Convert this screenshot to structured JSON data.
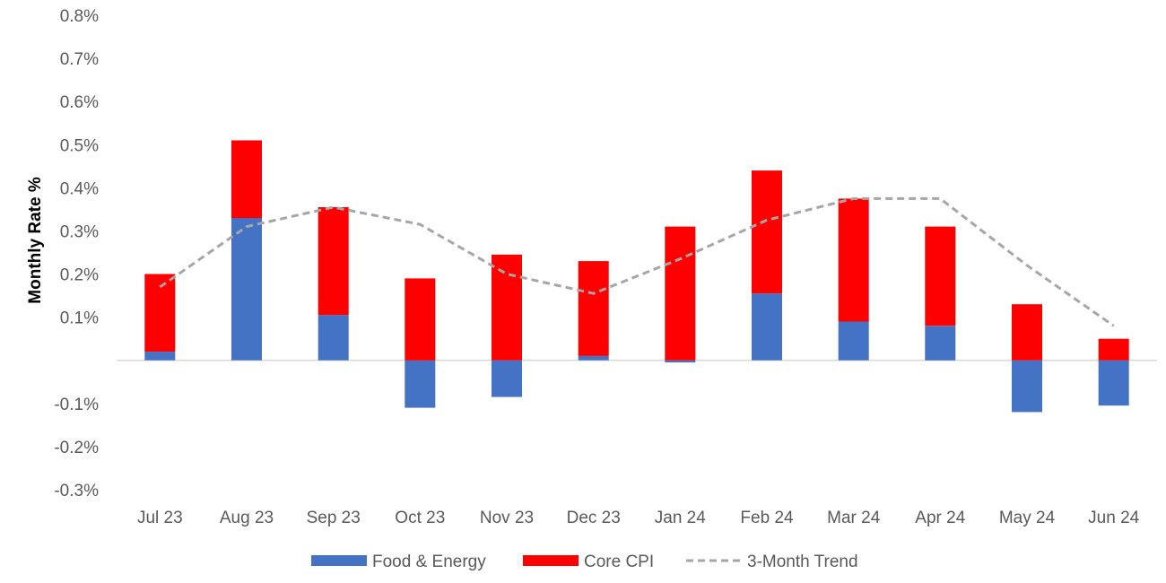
{
  "chart_data": {
    "type": "bar",
    "stacked": true,
    "title": "",
    "xlabel": "",
    "ylabel": "Monthly Rate %",
    "ylim": [
      -0.3,
      0.8
    ],
    "yticks": [
      "-0.3%",
      "-0.2%",
      "-0.1%",
      "",
      "0.1%",
      "0.2%",
      "0.3%",
      "0.4%",
      "0.5%",
      "0.6%",
      "0.7%",
      "0.8%"
    ],
    "categories": [
      "Jul 23",
      "Aug 23",
      "Sep 23",
      "Oct 23",
      "Nov 23",
      "Dec 23",
      "Jan 24",
      "Feb 24",
      "Mar 24",
      "Apr 24",
      "May 24",
      "Jun 24"
    ],
    "series": [
      {
        "name": "Food & Energy",
        "kind": "bar",
        "color": "#4472C4",
        "values": [
          0.02,
          0.33,
          0.105,
          -0.11,
          -0.085,
          0.01,
          -0.005,
          0.155,
          0.09,
          0.08,
          -0.12,
          -0.105
        ]
      },
      {
        "name": "Core CPI",
        "kind": "bar",
        "color": "#FF0000",
        "values": [
          0.18,
          0.18,
          0.25,
          0.19,
          0.245,
          0.22,
          0.31,
          0.285,
          0.285,
          0.23,
          0.13,
          0.05
        ]
      },
      {
        "name": "3-Month Trend",
        "kind": "line",
        "style": "dashed",
        "color": "#A6A6A6",
        "values": [
          0.17,
          0.31,
          0.355,
          0.315,
          0.2,
          0.155,
          0.235,
          0.325,
          0.375,
          0.375,
          0.22,
          0.08
        ]
      }
    ],
    "grid": false,
    "legend_position": "bottom"
  }
}
